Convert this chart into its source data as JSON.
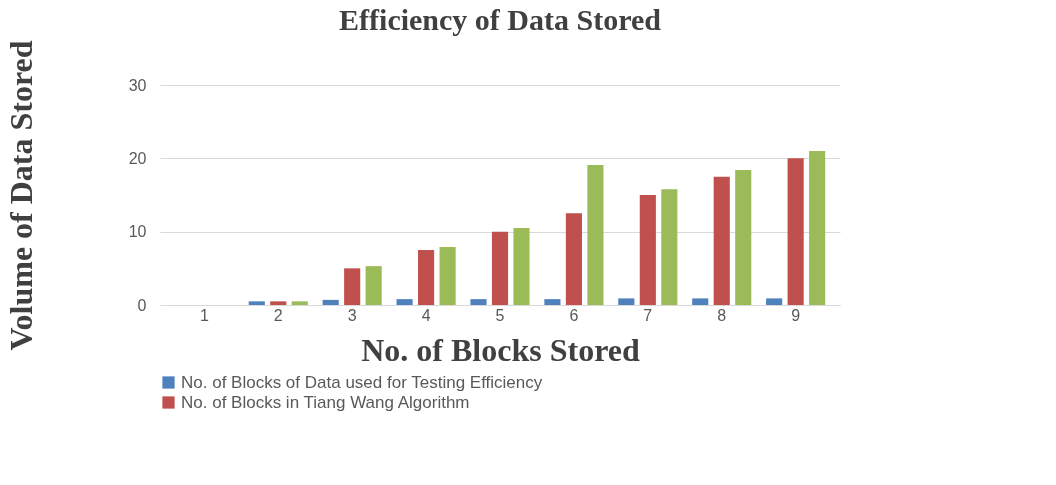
{
  "chart_data": {
    "type": "bar",
    "title": "Efficiency of Data Stored",
    "xlabel": "No. of Blocks Stored",
    "ylabel": "Volume of Data Stored",
    "categories": [
      "1",
      "2",
      "3",
      "4",
      "5",
      "6",
      "7",
      "8",
      "9"
    ],
    "series": [
      {
        "name": "No. of Blocks of Data used for Testing Efficiency",
        "color": "#4f81bd",
        "values": [
          0,
          0.5,
          0.7,
          0.8,
          0.8,
          0.8,
          0.9,
          0.9,
          0.9
        ]
      },
      {
        "name": "No. of Blocks in Tiang Wang Algorithm",
        "color": "#c0504d",
        "values": [
          0,
          0.5,
          5,
          7.5,
          10,
          12.5,
          15,
          17.5,
          20
        ]
      },
      {
        "color": "#9bbb59",
        "values": [
          0,
          0.5,
          5.3,
          7.9,
          10.5,
          19.1,
          15.8,
          18.4,
          21
        ]
      }
    ],
    "ylim": [
      0,
      30
    ],
    "yticks": [
      0,
      10,
      20,
      30
    ],
    "grid": "y",
    "legend": "bottom"
  }
}
